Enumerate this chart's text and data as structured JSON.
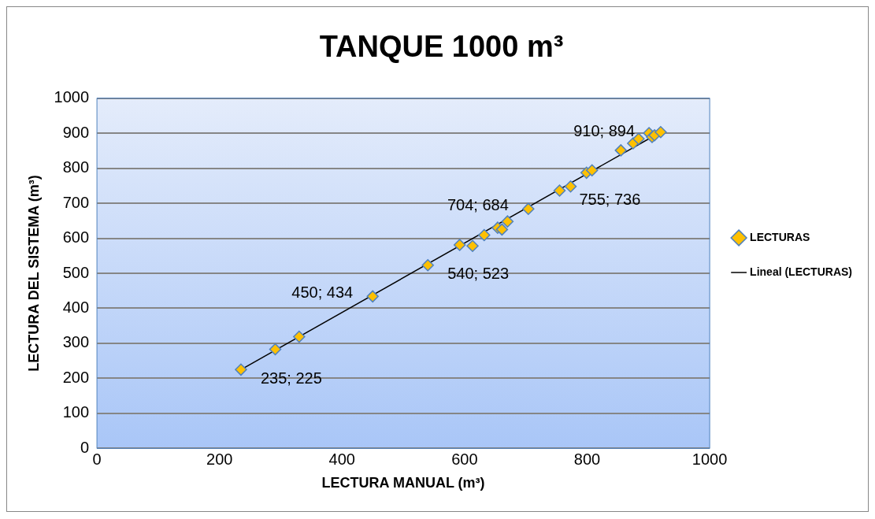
{
  "chart_data": {
    "type": "scatter",
    "title": "TANQUE 1000 m³",
    "xlabel": "LECTURA MANUAL (m³)",
    "ylabel": "LECTURA DEL SISTEMA (m³)",
    "xlim": [
      0,
      1000
    ],
    "xticks": [
      0,
      200,
      400,
      600,
      800,
      1000
    ],
    "ylim": [
      0,
      1000
    ],
    "yticks": [
      0,
      100,
      200,
      300,
      400,
      500,
      600,
      700,
      800,
      900,
      1000
    ],
    "grid": "y",
    "legend": "right",
    "series": [
      {
        "name": "LECTURAS",
        "marker": "diamond",
        "color": "#ffc000",
        "x": [
          235,
          291,
          330,
          450,
          540,
          592,
          613,
          632,
          654,
          661,
          670,
          704,
          755,
          773,
          799,
          808,
          855,
          875,
          884,
          901,
          906,
          910,
          920
        ],
        "values": [
          225,
          283,
          319,
          434,
          523,
          581,
          578,
          609,
          630,
          625,
          648,
          684,
          736,
          748,
          787,
          794,
          851,
          871,
          884,
          900,
          889,
          894,
          903
        ],
        "value_labels": [
          "235; 225",
          null,
          null,
          "450; 434",
          "540; 523",
          null,
          null,
          null,
          null,
          null,
          null,
          "704; 684",
          "755; 736",
          null,
          null,
          null,
          null,
          null,
          null,
          null,
          null,
          "910; 894",
          null
        ]
      },
      {
        "name": "Lineal (LECTURAS)",
        "type": "line",
        "marker": "none",
        "color": "#000000",
        "x": [
          235,
          920
        ],
        "values": [
          225,
          903
        ]
      }
    ]
  }
}
